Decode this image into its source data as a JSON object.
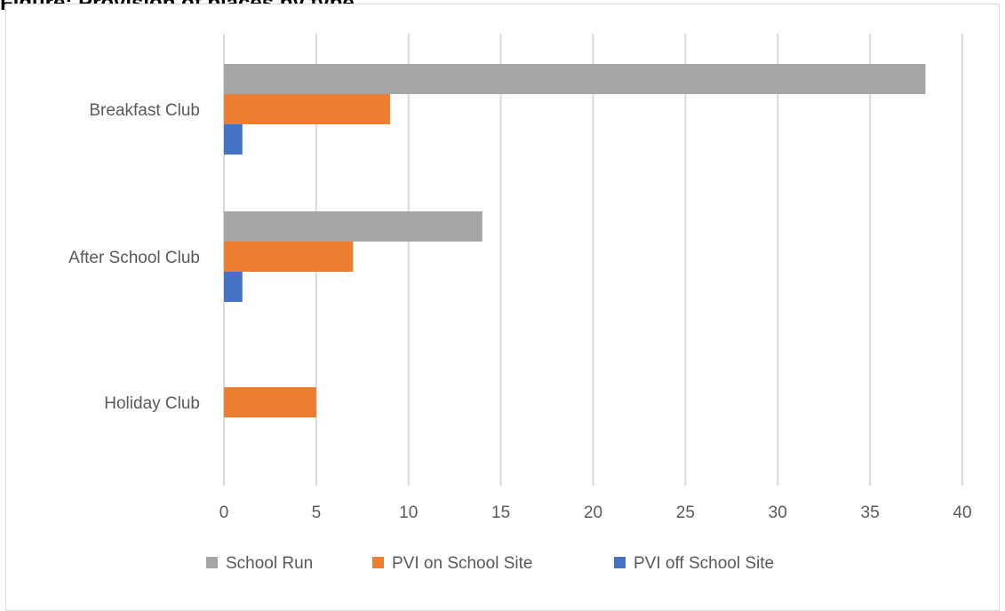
{
  "page_title": "Figure: Provision of places by type",
  "chart_data": {
    "type": "bar",
    "orientation": "horizontal",
    "title": "",
    "categories": [
      "Breakfast Club",
      "After School Club",
      "Holiday Club"
    ],
    "series": [
      {
        "name": "School Run",
        "color": "#a5a5a5",
        "values": [
          38,
          14,
          0
        ]
      },
      {
        "name": "PVI on School Site",
        "color": "#ed7d31",
        "values": [
          9,
          7,
          5
        ]
      },
      {
        "name": "PVI off School Site",
        "color": "#4472c4",
        "values": [
          1,
          1,
          0
        ]
      }
    ],
    "x_ticks": [
      "0",
      "5",
      "10",
      "15",
      "20",
      "25",
      "30",
      "35",
      "40"
    ],
    "xlim": [
      0,
      40
    ],
    "grid": "vertical",
    "legend_position": "bottom"
  }
}
